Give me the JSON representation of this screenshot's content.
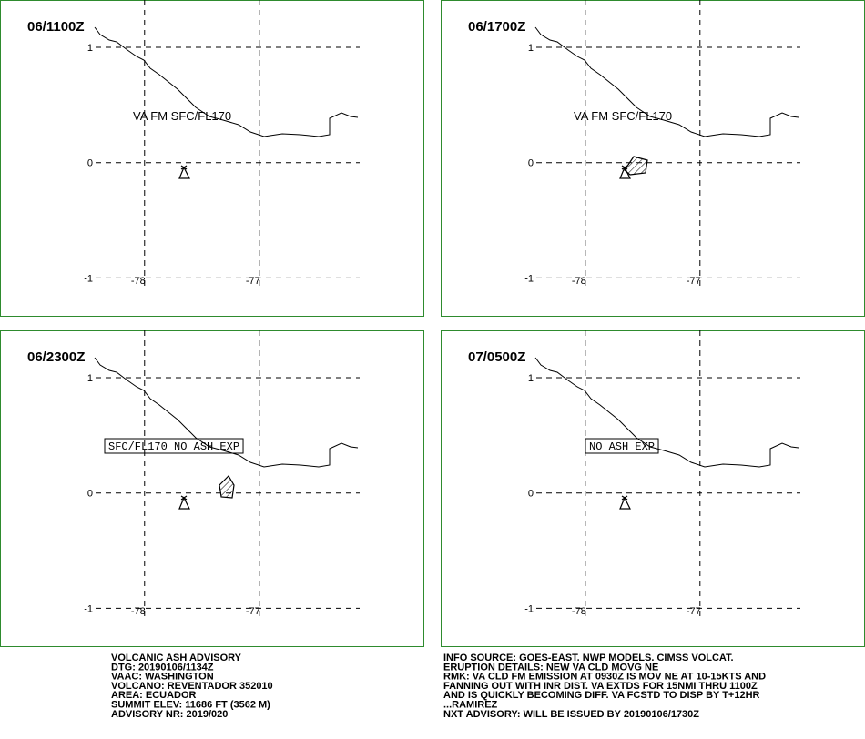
{
  "map": {
    "xlim": [
      -79.26,
      -75.57
    ],
    "ylim": [
      -1.336,
      1.41
    ],
    "lat_ticks": [
      1,
      0,
      -1
    ],
    "lon_ticks": [
      -78,
      -77
    ]
  },
  "panels": [
    {
      "time": "06/1100Z",
      "label": "VA FM SFC/FL170",
      "boxed": false
    },
    {
      "time": "06/1700Z",
      "label": "VA FM SFC/FL170",
      "boxed": false
    },
    {
      "time": "06/2300Z",
      "label": "SFC/FL170 NO ASH EXP",
      "boxed": true
    },
    {
      "time": "07/0500Z",
      "label": "NO ASH EXP",
      "boxed": true
    }
  ],
  "advisory_left": [
    "VOLCANIC ASH ADVISORY",
    "DTG: 20190106/1134Z",
    "VAAC: WASHINGTON",
    "VOLCANO: REVENTADOR 352010",
    "AREA: ECUADOR",
    "SUMMIT ELEV: 11686 FT (3562 M)",
    "ADVISORY NR: 2019/020"
  ],
  "advisory_right": [
    "INFO SOURCE: GOES-EAST. NWP MODELS. CIMSS VOLCAT.",
    "ERUPTION DETAILS: NEW VA CLD MOVG NE",
    "RMK: VA CLD FM EMISSION AT 0930Z IS MOV NE AT 10-15KTS AND",
    "FANNING OUT WITH INR DIST. VA EXTDS FOR 15NMI THRU 1100Z",
    "AND IS QUICKLY BECOMING DIFF. VA FCSTD TO DISP BY T+12HR",
    "...RAMIREZ",
    "NXT ADVISORY: WILL BE ISSUED BY 20190106/1730Z"
  ]
}
